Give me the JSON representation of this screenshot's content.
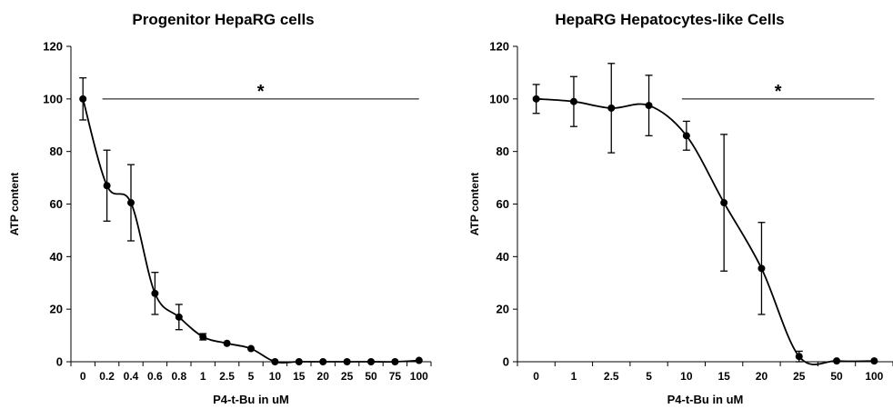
{
  "chart_data": [
    {
      "type": "line",
      "title": "Progenitor HepaRG cells",
      "xlabel": "P4-t-Bu  in uM",
      "ylabel": "ATP content",
      "ylim": [
        0,
        120
      ],
      "yticks": [
        "0",
        "20",
        "40",
        "60",
        "80",
        "100",
        "120"
      ],
      "categories": [
        "0",
        "0.2",
        "0.4",
        "0.6",
        "0.8",
        "1",
        "2.5",
        "5",
        "10",
        "15",
        "20",
        "25",
        "50",
        "75",
        "100"
      ],
      "values": [
        100,
        67,
        60.5,
        26,
        17,
        9.5,
        7,
        5,
        0,
        0,
        0,
        0,
        0,
        0,
        0.5
      ],
      "errors": [
        8,
        13.5,
        14.5,
        8,
        4.8,
        1.2,
        0,
        0,
        0,
        0,
        0,
        0,
        0,
        0,
        0
      ],
      "grid": false,
      "significance": {
        "label": "*",
        "from": "0.2",
        "to": "100",
        "y": 100
      }
    },
    {
      "type": "line",
      "title": "HepaRG Hepatocytes-like Cells",
      "xlabel": "P4-t-Bu  in uM",
      "ylabel": "ATP content",
      "ylim": [
        0,
        120
      ],
      "yticks": [
        "0",
        "20",
        "40",
        "60",
        "80",
        "100",
        "120"
      ],
      "categories": [
        "0",
        "1",
        "2.5",
        "5",
        "10",
        "15",
        "20",
        "25",
        "50",
        "100"
      ],
      "values": [
        100,
        99,
        96.5,
        97.5,
        86,
        60.5,
        35.5,
        2,
        0.3,
        0.3
      ],
      "errors": [
        5.5,
        9.5,
        17,
        11.5,
        5.5,
        26,
        17.5,
        2,
        0,
        0
      ],
      "grid": false,
      "significance": {
        "label": "*",
        "from": "10",
        "to": "100",
        "y": 100
      }
    }
  ]
}
